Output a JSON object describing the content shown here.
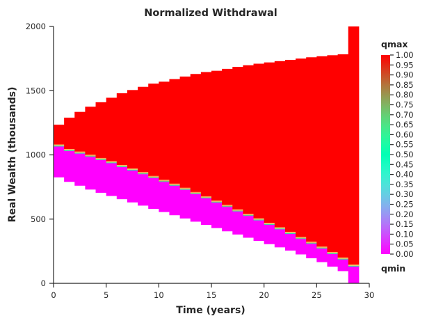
{
  "chart_data": {
    "type": "heatmap",
    "title": "Normalized Withdrawal",
    "xlabel": "Time (years)",
    "ylabel": "Real Wealth (thousands)",
    "xlim": [
      0,
      30
    ],
    "ylim": [
      0,
      2000
    ],
    "x_ticks": [
      0,
      5,
      10,
      15,
      20,
      25,
      30
    ],
    "y_ticks": [
      0,
      500,
      1000,
      1500,
      2000
    ],
    "grid": false,
    "colormap": "rainbow",
    "colorbar": {
      "top_label": "qmax",
      "bottom_label": "qmin",
      "range": [
        0.0,
        1.0
      ],
      "tick_labels": [
        "0.00",
        "0.05",
        "0.10",
        "0.15",
        "0.20",
        "0.25",
        "0.30",
        "0.35",
        "0.40",
        "0.45",
        "0.50",
        "0.55",
        "0.60",
        "0.65",
        "0.70",
        "0.75",
        "0.80",
        "0.85",
        "0.90",
        "0.95",
        "1.00"
      ]
    },
    "columns": [
      {
        "t_start": 0,
        "t_end": 1,
        "wealth_min": 825,
        "wealth_max": 1235,
        "boundary": 1065
      },
      {
        "t_start": 1,
        "t_end": 2,
        "wealth_min": 790,
        "wealth_max": 1290,
        "boundary": 1030
      },
      {
        "t_start": 2,
        "t_end": 3,
        "wealth_min": 760,
        "wealth_max": 1335,
        "boundary": 1010
      },
      {
        "t_start": 3,
        "t_end": 4,
        "wealth_min": 730,
        "wealth_max": 1375,
        "boundary": 985
      },
      {
        "t_start": 4,
        "t_end": 5,
        "wealth_min": 705,
        "wealth_max": 1410,
        "boundary": 960
      },
      {
        "t_start": 5,
        "t_end": 6,
        "wealth_min": 680,
        "wealth_max": 1445,
        "boundary": 935
      },
      {
        "t_start": 6,
        "t_end": 7,
        "wealth_min": 655,
        "wealth_max": 1480,
        "boundary": 905
      },
      {
        "t_start": 7,
        "t_end": 8,
        "wealth_min": 630,
        "wealth_max": 1505,
        "boundary": 878
      },
      {
        "t_start": 8,
        "t_end": 9,
        "wealth_min": 605,
        "wealth_max": 1530,
        "boundary": 850
      },
      {
        "t_start": 9,
        "t_end": 10,
        "wealth_min": 580,
        "wealth_max": 1555,
        "boundary": 820
      },
      {
        "t_start": 10,
        "t_end": 11,
        "wealth_min": 555,
        "wealth_max": 1570,
        "boundary": 790
      },
      {
        "t_start": 11,
        "t_end": 12,
        "wealth_min": 530,
        "wealth_max": 1590,
        "boundary": 760
      },
      {
        "t_start": 12,
        "t_end": 13,
        "wealth_min": 505,
        "wealth_max": 1610,
        "boundary": 728
      },
      {
        "t_start": 13,
        "t_end": 14,
        "wealth_min": 480,
        "wealth_max": 1630,
        "boundary": 695
      },
      {
        "t_start": 14,
        "t_end": 15,
        "wealth_min": 455,
        "wealth_max": 1645,
        "boundary": 662
      },
      {
        "t_start": 15,
        "t_end": 16,
        "wealth_min": 430,
        "wealth_max": 1655,
        "boundary": 628
      },
      {
        "t_start": 16,
        "t_end": 17,
        "wealth_min": 405,
        "wealth_max": 1670,
        "boundary": 595
      },
      {
        "t_start": 17,
        "t_end": 18,
        "wealth_min": 380,
        "wealth_max": 1685,
        "boundary": 560
      },
      {
        "t_start": 18,
        "t_end": 19,
        "wealth_min": 355,
        "wealth_max": 1698,
        "boundary": 525
      },
      {
        "t_start": 19,
        "t_end": 20,
        "wealth_min": 330,
        "wealth_max": 1710,
        "boundary": 490
      },
      {
        "t_start": 20,
        "t_end": 21,
        "wealth_min": 305,
        "wealth_max": 1720,
        "boundary": 455
      },
      {
        "t_start": 21,
        "t_end": 22,
        "wealth_min": 280,
        "wealth_max": 1730,
        "boundary": 420
      },
      {
        "t_start": 22,
        "t_end": 23,
        "wealth_min": 255,
        "wealth_max": 1740,
        "boundary": 385
      },
      {
        "t_start": 23,
        "t_end": 24,
        "wealth_min": 225,
        "wealth_max": 1750,
        "boundary": 345
      },
      {
        "t_start": 24,
        "t_end": 25,
        "wealth_min": 195,
        "wealth_max": 1760,
        "boundary": 308
      },
      {
        "t_start": 25,
        "t_end": 26,
        "wealth_min": 165,
        "wealth_max": 1768,
        "boundary": 270
      },
      {
        "t_start": 26,
        "t_end": 27,
        "wealth_min": 130,
        "wealth_max": 1776,
        "boundary": 228
      },
      {
        "t_start": 27,
        "t_end": 28,
        "wealth_min": 95,
        "wealth_max": 1783,
        "boundary": 185
      },
      {
        "t_start": 28,
        "t_end": 29,
        "wealth_min": 0,
        "wealth_max": 2000,
        "boundary": 130
      }
    ]
  }
}
